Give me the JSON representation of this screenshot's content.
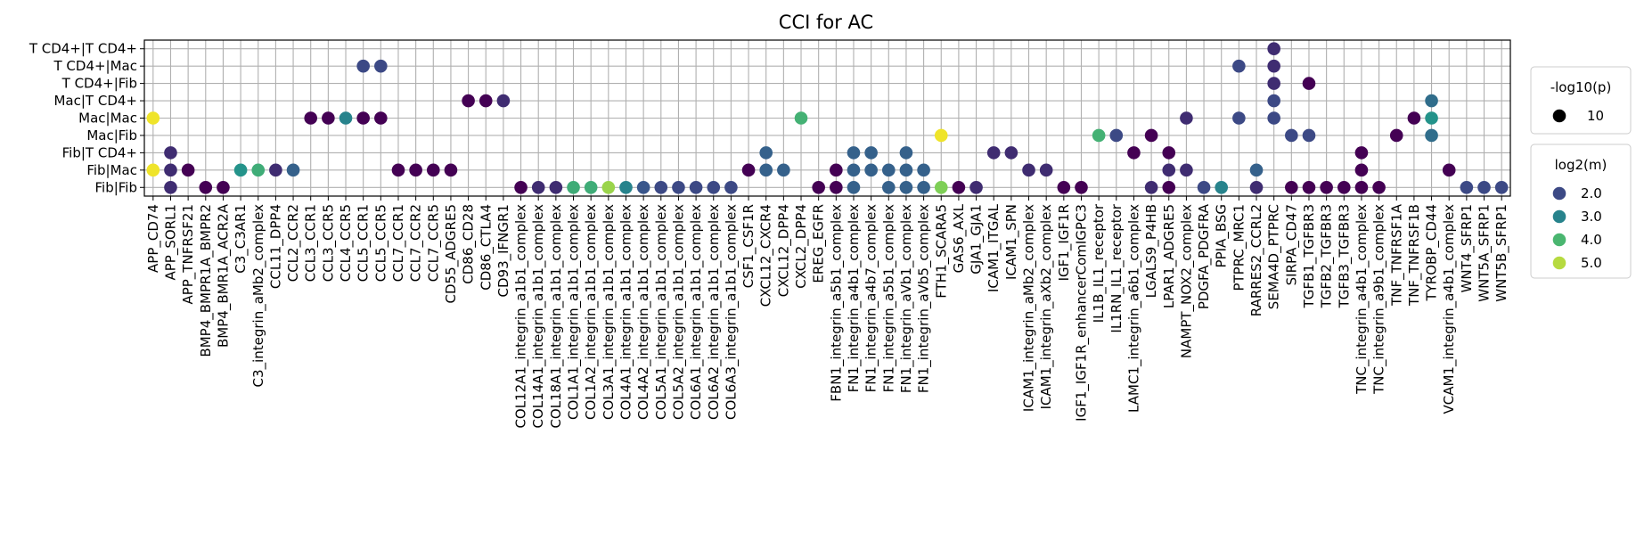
{
  "chart_data": {
    "type": "scatter",
    "title": "CCI for AC",
    "y_categories": [
      "T CD4+|T CD4+",
      "T CD4+|Mac",
      "T CD4+|Fib",
      "Mac|T CD4+",
      "Mac|Mac",
      "Mac|Fib",
      "Fib|T CD4+",
      "Fib|Mac",
      "Fib|Fib"
    ],
    "x_categories": [
      "APP_CD74",
      "APP_SORL1",
      "APP_TNFRSF21",
      "BMP4_BMPR1A_BMPR2",
      "BMP4_BMR1A_ACR2A",
      "C3_C3AR1",
      "C3_integrin_aMb2_complex",
      "CCL11_DPP4",
      "CCL2_CCR2",
      "CCL3_CCR1",
      "CCL3_CCR5",
      "CCL4_CCR5",
      "CCL5_CCR1",
      "CCL5_CCR5",
      "CCL7_CCR1",
      "CCL7_CCR2",
      "CCL7_CCR5",
      "CD55_ADGRE5",
      "CD86_CD28",
      "CD86_CTLA4",
      "CD93_IFNGR1",
      "COL12A1_integrin_a1b1_complex",
      "COL14A1_integrin_a1b1_complex",
      "COL18A1_integrin_a1b1_complex",
      "COL1A1_integrin_a1b1_complex",
      "COL1A2_integrin_a1b1_complex",
      "COL3A1_integrin_a1b1_complex",
      "COL4A1_integrin_a1b1_complex",
      "COL4A2_integrin_a1b1_complex",
      "COL5A1_integrin_a1b1_complex",
      "COL5A2_integrin_a1b1_complex",
      "COL6A1_integrin_a1b1_complex",
      "COL6A2_integrin_a1b1_complex",
      "COL6A3_integrin_a1b1_complex",
      "CSF1_CSF1R",
      "CXCL12_CXCR4",
      "CXCL12_DPP4",
      "CXCL2_DPP4",
      "EREG_EGFR",
      "FBN1_integrin_a5b1_complex",
      "FN1_integrin_a4b1_complex",
      "FN1_integrin_a4b7_complex",
      "FN1_integrin_a5b1_complex",
      "FN1_integrin_aVb1_complex",
      "FN1_integrin_aVb5_complex",
      "FTH1_SCARA5",
      "GAS6_AXL",
      "GJA1_GJA1",
      "ICAM1_ITGAL",
      "ICAM1_SPN",
      "ICAM1_integrin_aMb2_complex",
      "ICAM1_integrin_aXb2_complex",
      "IGF1_IGF1R",
      "IGF1_IGF1R_enhancerComIGPC3",
      "IL1B_IL1_receptor",
      "IL1RN_IL1_receptor",
      "LAMC1_integrin_a6b1_complex",
      "LGALS9_P4HB",
      "LPAR1_ADGRE5",
      "NAMPT_NOX2_complex",
      "PDGFA_PDGFRA",
      "PPIA_BSG",
      "PTPRC_MRC1",
      "RARRES2_CCRL2",
      "SEMA4D_PTPRC",
      "SIRPA_CD47",
      "TGFB1_TGFBR3",
      "TGFB2_TGFBR3",
      "TGFB3_TGFBR3",
      "TNC_integrin_a4b1_complex",
      "TNC_integrin_a9b1_complex",
      "TNF_TNFRSF1A",
      "TNF_TNFRSF1B",
      "TYROBP_CD44",
      "VCAM1_integrin_a4b1_complex",
      "WNT4_SFRP1",
      "WNT5A_SFRP1",
      "WNT5B_SFRP1"
    ],
    "points": [
      {
        "x": "APP_CD74",
        "y": "Mac|Mac",
        "log2m": 5.4
      },
      {
        "x": "APP_CD74",
        "y": "Fib|Mac",
        "log2m": 5.4
      },
      {
        "x": "APP_SORL1",
        "y": "Fib|T CD4+",
        "log2m": 1.6
      },
      {
        "x": "APP_SORL1",
        "y": "Fib|Mac",
        "log2m": 1.6
      },
      {
        "x": "APP_SORL1",
        "y": "Fib|Fib",
        "log2m": 1.6
      },
      {
        "x": "APP_TNFRSF21",
        "y": "Fib|Mac",
        "log2m": 1.0
      },
      {
        "x": "BMP4_BMPR1A_BMPR2",
        "y": "Fib|Fib",
        "log2m": 1.0
      },
      {
        "x": "BMP4_BMR1A_ACR2A",
        "y": "Fib|Fib",
        "log2m": 1.0
      },
      {
        "x": "C3_C3AR1",
        "y": "Fib|Mac",
        "log2m": 3.3
      },
      {
        "x": "C3_integrin_aMb2_complex",
        "y": "Fib|Mac",
        "log2m": 3.8
      },
      {
        "x": "CCL11_DPP4",
        "y": "Fib|Mac",
        "log2m": 1.6
      },
      {
        "x": "CCL2_CCR2",
        "y": "Fib|Mac",
        "log2m": 2.4
      },
      {
        "x": "CCL3_CCR1",
        "y": "Mac|Mac",
        "log2m": 1.0
      },
      {
        "x": "CCL3_CCR5",
        "y": "Mac|Mac",
        "log2m": 1.0
      },
      {
        "x": "CCL4_CCR5",
        "y": "Mac|Mac",
        "log2m": 3.0
      },
      {
        "x": "CCL5_CCR1",
        "y": "T CD4+|Mac",
        "log2m": 2.0
      },
      {
        "x": "CCL5_CCR1",
        "y": "Mac|Mac",
        "log2m": 1.0
      },
      {
        "x": "CCL5_CCR5",
        "y": "T CD4+|Mac",
        "log2m": 2.0
      },
      {
        "x": "CCL5_CCR5",
        "y": "Mac|Mac",
        "log2m": 1.0
      },
      {
        "x": "CCL7_CCR1",
        "y": "Fib|Mac",
        "log2m": 1.0
      },
      {
        "x": "CCL7_CCR2",
        "y": "Fib|Mac",
        "log2m": 1.0
      },
      {
        "x": "CCL7_CCR5",
        "y": "Fib|Mac",
        "log2m": 1.0
      },
      {
        "x": "CD55_ADGRE5",
        "y": "Fib|Mac",
        "log2m": 1.0
      },
      {
        "x": "CD86_CD28",
        "y": "Mac|T CD4+",
        "log2m": 1.0
      },
      {
        "x": "CD86_CTLA4",
        "y": "Mac|T CD4+",
        "log2m": 1.0
      },
      {
        "x": "CD93_IFNGR1",
        "y": "Mac|T CD4+",
        "log2m": 1.6
      },
      {
        "x": "COL12A1_integrin_a1b1_complex",
        "y": "Fib|Fib",
        "log2m": 1.0
      },
      {
        "x": "COL14A1_integrin_a1b1_complex",
        "y": "Fib|Fib",
        "log2m": 1.6
      },
      {
        "x": "COL18A1_integrin_a1b1_complex",
        "y": "Fib|Fib",
        "log2m": 1.6
      },
      {
        "x": "COL1A1_integrin_a1b1_complex",
        "y": "Fib|Fib",
        "log2m": 3.8
      },
      {
        "x": "COL1A2_integrin_a1b1_complex",
        "y": "Fib|Fib",
        "log2m": 3.8
      },
      {
        "x": "COL3A1_integrin_a1b1_complex",
        "y": "Fib|Fib",
        "log2m": 4.8
      },
      {
        "x": "COL4A1_integrin_a1b1_complex",
        "y": "Fib|Fib",
        "log2m": 3.0
      },
      {
        "x": "COL4A2_integrin_a1b1_complex",
        "y": "Fib|Fib",
        "log2m": 2.2
      },
      {
        "x": "COL5A1_integrin_a1b1_complex",
        "y": "Fib|Fib",
        "log2m": 2.0
      },
      {
        "x": "COL5A2_integrin_a1b1_complex",
        "y": "Fib|Fib",
        "log2m": 2.0
      },
      {
        "x": "COL6A1_integrin_a1b1_complex",
        "y": "Fib|Fib",
        "log2m": 2.0
      },
      {
        "x": "COL6A2_integrin_a1b1_complex",
        "y": "Fib|Fib",
        "log2m": 2.0
      },
      {
        "x": "COL6A3_integrin_a1b1_complex",
        "y": "Fib|Fib",
        "log2m": 2.0
      },
      {
        "x": "CSF1_CSF1R",
        "y": "Fib|Mac",
        "log2m": 1.0
      },
      {
        "x": "CXCL12_CXCR4",
        "y": "Fib|T CD4+",
        "log2m": 2.4
      },
      {
        "x": "CXCL12_CXCR4",
        "y": "Fib|Mac",
        "log2m": 2.4
      },
      {
        "x": "CXCL12_DPP4",
        "y": "Fib|Mac",
        "log2m": 2.4
      },
      {
        "x": "CXCL2_DPP4",
        "y": "Mac|Mac",
        "log2m": 3.9
      },
      {
        "x": "EREG_EGFR",
        "y": "Fib|Fib",
        "log2m": 1.0
      },
      {
        "x": "FBN1_integrin_a5b1_complex",
        "y": "Fib|Mac",
        "log2m": 1.0
      },
      {
        "x": "FBN1_integrin_a5b1_complex",
        "y": "Fib|Fib",
        "log2m": 1.0
      },
      {
        "x": "FN1_integrin_a4b1_complex",
        "y": "Fib|T CD4+",
        "log2m": 2.4
      },
      {
        "x": "FN1_integrin_a4b1_complex",
        "y": "Fib|Mac",
        "log2m": 2.4
      },
      {
        "x": "FN1_integrin_a4b1_complex",
        "y": "Fib|Fib",
        "log2m": 2.4
      },
      {
        "x": "FN1_integrin_a4b7_complex",
        "y": "Fib|T CD4+",
        "log2m": 2.4
      },
      {
        "x": "FN1_integrin_a4b7_complex",
        "y": "Fib|Mac",
        "log2m": 2.4
      },
      {
        "x": "FN1_integrin_a5b1_complex",
        "y": "Fib|Mac",
        "log2m": 2.4
      },
      {
        "x": "FN1_integrin_a5b1_complex",
        "y": "Fib|Fib",
        "log2m": 2.4
      },
      {
        "x": "FN1_integrin_aVb1_complex",
        "y": "Fib|T CD4+",
        "log2m": 2.4
      },
      {
        "x": "FN1_integrin_aVb1_complex",
        "y": "Fib|Mac",
        "log2m": 2.4
      },
      {
        "x": "FN1_integrin_aVb1_complex",
        "y": "Fib|Fib",
        "log2m": 2.4
      },
      {
        "x": "FN1_integrin_aVb5_complex",
        "y": "Fib|Mac",
        "log2m": 2.4
      },
      {
        "x": "FN1_integrin_aVb5_complex",
        "y": "Fib|Fib",
        "log2m": 2.4
      },
      {
        "x": "FTH1_SCARA5",
        "y": "Mac|Fib",
        "log2m": 5.4
      },
      {
        "x": "FTH1_SCARA5",
        "y": "Fib|Fib",
        "log2m": 4.6
      },
      {
        "x": "GAS6_AXL",
        "y": "Fib|Fib",
        "log2m": 1.0
      },
      {
        "x": "GJA1_GJA1",
        "y": "Fib|Fib",
        "log2m": 1.6
      },
      {
        "x": "ICAM1_ITGAL",
        "y": "Fib|T CD4+",
        "log2m": 1.6
      },
      {
        "x": "ICAM1_SPN",
        "y": "Fib|T CD4+",
        "log2m": 1.6
      },
      {
        "x": "ICAM1_integrin_aMb2_complex",
        "y": "Fib|Mac",
        "log2m": 1.6
      },
      {
        "x": "ICAM1_integrin_aXb2_complex",
        "y": "Fib|Mac",
        "log2m": 1.6
      },
      {
        "x": "IGF1_IGF1R",
        "y": "Fib|Fib",
        "log2m": 1.0
      },
      {
        "x": "IGF1_IGF1R_enhancerComIGPC3",
        "y": "Fib|Fib",
        "log2m": 1.0
      },
      {
        "x": "IL1B_IL1_receptor",
        "y": "Mac|Fib",
        "log2m": 3.9
      },
      {
        "x": "IL1RN_IL1_receptor",
        "y": "Mac|Fib",
        "log2m": 2.0
      },
      {
        "x": "LAMC1_integrin_a6b1_complex",
        "y": "Fib|T CD4+",
        "log2m": 1.0
      },
      {
        "x": "LGALS9_P4HB",
        "y": "Mac|Fib",
        "log2m": 1.0
      },
      {
        "x": "LGALS9_P4HB",
        "y": "Fib|Fib",
        "log2m": 1.6
      },
      {
        "x": "LPAR1_ADGRE5",
        "y": "Fib|T CD4+",
        "log2m": 1.0
      },
      {
        "x": "LPAR1_ADGRE5",
        "y": "Fib|Mac",
        "log2m": 1.6
      },
      {
        "x": "LPAR1_ADGRE5",
        "y": "Fib|Fib",
        "log2m": 1.0
      },
      {
        "x": "NAMPT_NOX2_complex",
        "y": "Mac|Mac",
        "log2m": 1.6
      },
      {
        "x": "NAMPT_NOX2_complex",
        "y": "Fib|Mac",
        "log2m": 1.6
      },
      {
        "x": "PDGFA_PDGFRA",
        "y": "Fib|Fib",
        "log2m": 2.0
      },
      {
        "x": "PPIA_BSG",
        "y": "Fib|Fib",
        "log2m": 3.0
      },
      {
        "x": "PTPRC_MRC1",
        "y": "T CD4+|Mac",
        "log2m": 2.0
      },
      {
        "x": "PTPRC_MRC1",
        "y": "Mac|Mac",
        "log2m": 2.0
      },
      {
        "x": "RARRES2_CCRL2",
        "y": "Fib|Mac",
        "log2m": 2.4
      },
      {
        "x": "RARRES2_CCRL2",
        "y": "Fib|Fib",
        "log2m": 1.6
      },
      {
        "x": "SEMA4D_PTPRC",
        "y": "T CD4+|T CD4+",
        "log2m": 1.6
      },
      {
        "x": "SEMA4D_PTPRC",
        "y": "T CD4+|Mac",
        "log2m": 1.6
      },
      {
        "x": "SEMA4D_PTPRC",
        "y": "T CD4+|Fib",
        "log2m": 1.6
      },
      {
        "x": "SEMA4D_PTPRC",
        "y": "Mac|T CD4+",
        "log2m": 2.0
      },
      {
        "x": "SEMA4D_PTPRC",
        "y": "Mac|Mac",
        "log2m": 2.0
      },
      {
        "x": "SIRPA_CD47",
        "y": "Mac|Fib",
        "log2m": 2.0
      },
      {
        "x": "SIRPA_CD47",
        "y": "Fib|Fib",
        "log2m": 1.0
      },
      {
        "x": "TGFB1_TGFBR3",
        "y": "T CD4+|Fib",
        "log2m": 1.0
      },
      {
        "x": "TGFB1_TGFBR3",
        "y": "Mac|Fib",
        "log2m": 2.0
      },
      {
        "x": "TGFB1_TGFBR3",
        "y": "Fib|Fib",
        "log2m": 1.0
      },
      {
        "x": "TGFB2_TGFBR3",
        "y": "Fib|Fib",
        "log2m": 1.0
      },
      {
        "x": "TGFB3_TGFBR3",
        "y": "Fib|Fib",
        "log2m": 1.0
      },
      {
        "x": "TNC_integrin_a4b1_complex",
        "y": "Fib|T CD4+",
        "log2m": 1.0
      },
      {
        "x": "TNC_integrin_a4b1_complex",
        "y": "Fib|Mac",
        "log2m": 1.0
      },
      {
        "x": "TNC_integrin_a4b1_complex",
        "y": "Fib|Fib",
        "log2m": 1.0
      },
      {
        "x": "TNC_integrin_a9b1_complex",
        "y": "Fib|Fib",
        "log2m": 1.0
      },
      {
        "x": "TNF_TNFRSF1A",
        "y": "Mac|Fib",
        "log2m": 1.0
      },
      {
        "x": "TNF_TNFRSF1B",
        "y": "Mac|Mac",
        "log2m": 1.0
      },
      {
        "x": "TYROBP_CD44",
        "y": "Mac|T CD4+",
        "log2m": 2.6
      },
      {
        "x": "TYROBP_CD44",
        "y": "Mac|Mac",
        "log2m": 3.3
      },
      {
        "x": "TYROBP_CD44",
        "y": "Mac|Fib",
        "log2m": 2.6
      },
      {
        "x": "VCAM1_integrin_a4b1_complex",
        "y": "Fib|Mac",
        "log2m": 1.0
      },
      {
        "x": "WNT4_SFRP1",
        "y": "Fib|Fib",
        "log2m": 2.0
      },
      {
        "x": "WNT5A_SFRP1",
        "y": "Fib|Fib",
        "log2m": 2.0
      },
      {
        "x": "WNT5B_SFRP1",
        "y": "Fib|Fib",
        "log2m": 2.0
      }
    ],
    "size_legend": {
      "title": "-log10(p)",
      "entries": [
        "10"
      ]
    },
    "color_legend": {
      "title": "log2(m)",
      "entries": [
        {
          "label": "2.0",
          "value": 2.0
        },
        {
          "label": "3.0",
          "value": 3.0
        },
        {
          "label": "4.0",
          "value": 4.0
        },
        {
          "label": "5.0",
          "value": 5.0
        }
      ]
    },
    "colormap": "viridis",
    "color_range": [
      1.0,
      5.5
    ],
    "grid": true,
    "legend_position": "right"
  }
}
